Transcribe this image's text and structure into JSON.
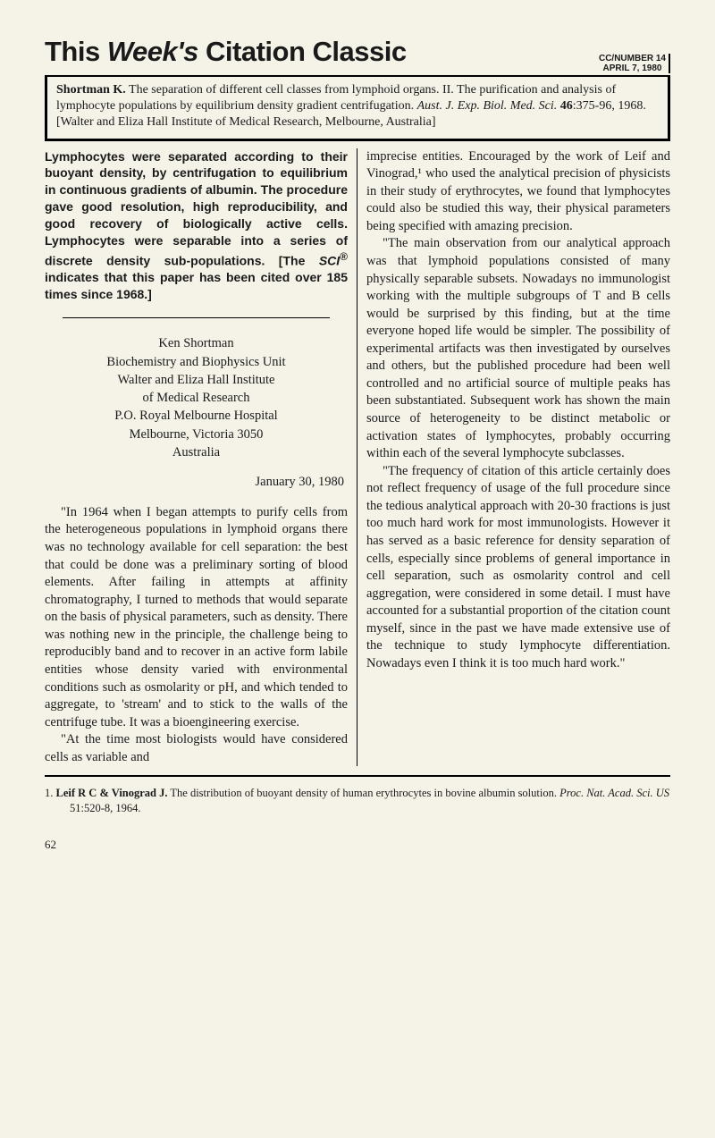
{
  "header": {
    "title_prefix": "This ",
    "title_italic": "Week's",
    "title_suffix": " Citation Classic",
    "issue_line1": "CC/NUMBER 14",
    "issue_line2": "APRIL 7, 1980"
  },
  "citation": "Shortman K. The separation of different cell classes from lymphoid organs. II. The purification and analysis of lymphocyte populations by equilibrium density gradient centrifugation. Aust. J. Exp. Biol. Med. Sci. 46:375-96, 1968. [Walter and Eliza Hall Institute of Medical Research, Melbourne, Australia]",
  "abstract": "Lymphocytes were separated according to their buoyant density, by centrifugation to equilibrium in continuous gradients of albumin. The procedure gave good resolution, high reproducibility, and good recovery of biologically active cells. Lymphocytes were separable into a series of discrete density sub-populations. [The SCI® indicates that this paper has been cited over 185 times since 1968.]",
  "author": {
    "name": "Ken Shortman",
    "lines": [
      "Biochemistry and Biophysics Unit",
      "Walter and Eliza Hall Institute",
      "of Medical Research",
      "P.O. Royal Melbourne Hospital",
      "Melbourne, Victoria 3050",
      "Australia"
    ]
  },
  "date": "January 30, 1980",
  "left_paras": [
    "\"In 1964 when I began attempts to purify cells from the heterogeneous populations in lymphoid organs there was no technology available for cell separation: the best that could be done was a preliminary sorting of blood elements. After failing in attempts at affinity chromatography, I turned to methods that would separate on the basis of physical parameters, such as density. There was nothing new in the principle, the challenge being to reproducibly band and to recover in an active form labile entities whose density varied with environmental conditions such as osmolarity or pH, and which tended to aggregate, to 'stream' and to stick to the walls of the centrifuge tube. It was a bioengineering exercise.",
    "\"At the time most biologists would have considered cells as variable and"
  ],
  "right_paras": [
    "imprecise entities. Encouraged by the work of Leif and Vinograd,¹ who used the analytical precision of physicists in their study of erythrocytes, we found that lymphocytes could also be studied this way, their physical parameters being specified with amazing precision.",
    "\"The main observation from our analytical approach was that lymphoid populations consisted of many physically separable subsets. Nowadays no immunologist working with the multiple subgroups of T and B cells would be surprised by this finding, but at the time everyone hoped life would be simpler. The possibility of experimental artifacts was then investigated by ourselves and others, but the published procedure had been well controlled and no artificial source of multiple peaks has been substantiated. Subsequent work has shown the main source of heterogeneity to be distinct metabolic or activation states of lymphocytes, probably occurring within each of the several lymphocyte subclasses.",
    "\"The frequency of citation of this article certainly does not reflect frequency of usage of the full procedure since the tedious analytical approach with 20-30 fractions is just too much hard work for most immunologists. However it has served as a basic reference for density separation of cells, especially since problems of general importance in cell separation, such as osmolarity control and cell aggregation, were considered in some detail. I must have accounted for a substantial proportion of the citation count myself, since in the past we have made extensive use of the technique to study lymphocyte differentiation. Nowadays even I think it is too much hard work.\""
  ],
  "reference": {
    "num": "1.",
    "authors": "Leif R C & Vinograd J.",
    "text": " The distribution of buoyant density of human erythrocytes in bovine albumin solution. ",
    "journal": "Proc. Nat. Acad. Sci. US",
    "tail": " 51:520-8, 1964."
  },
  "page": "62"
}
